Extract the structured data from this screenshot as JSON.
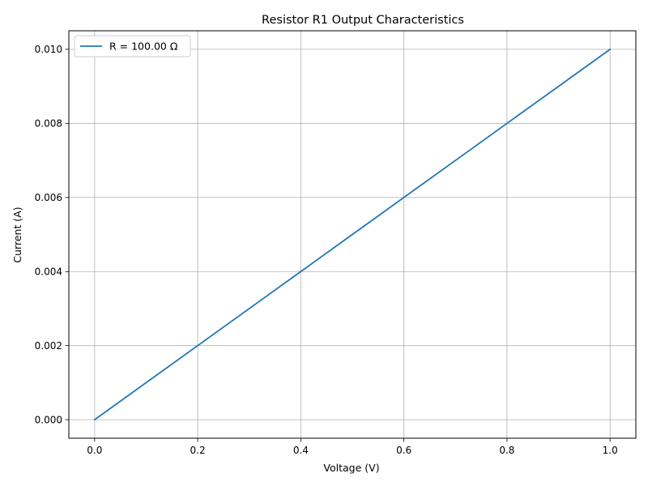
{
  "chart_data": {
    "type": "line",
    "title": "Resistor R1 Output Characteristics",
    "xlabel": "Voltage (V)",
    "ylabel": "Current (A)",
    "xlim": [
      -0.05,
      1.05
    ],
    "ylim": [
      -0.0005,
      0.0105
    ],
    "xticks": [
      0.0,
      0.2,
      0.4,
      0.6,
      0.8,
      1.0
    ],
    "xtick_labels": [
      "0.0",
      "0.2",
      "0.4",
      "0.6",
      "0.8",
      "1.0"
    ],
    "yticks": [
      0.0,
      0.002,
      0.004,
      0.006,
      0.008,
      0.01
    ],
    "ytick_labels": [
      "0.000",
      "0.002",
      "0.004",
      "0.006",
      "0.008",
      "0.010"
    ],
    "grid": true,
    "legend_position": "top-left",
    "series": [
      {
        "name": "R = 100.00 Ω",
        "color": "#1f77b4",
        "x": [
          0.0,
          0.1,
          0.2,
          0.3,
          0.4,
          0.5,
          0.6,
          0.7,
          0.8,
          0.9,
          1.0
        ],
        "y": [
          0.0,
          0.001,
          0.002,
          0.003,
          0.004,
          0.005,
          0.006,
          0.007,
          0.008,
          0.009,
          0.01
        ]
      }
    ]
  }
}
